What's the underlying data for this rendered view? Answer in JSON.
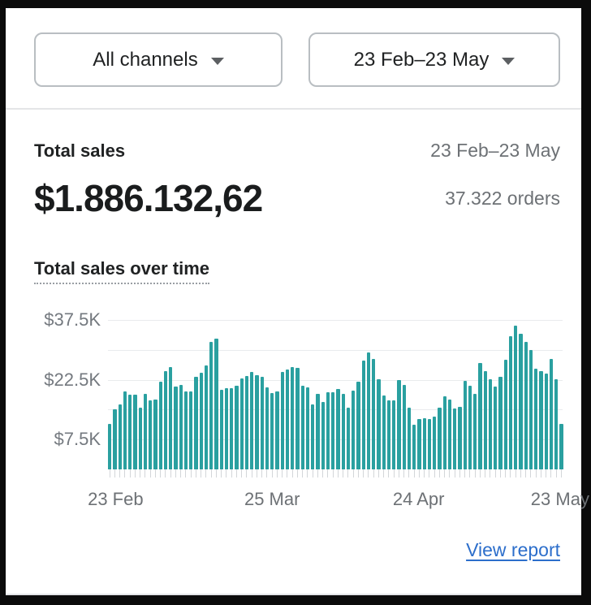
{
  "colors": {
    "bar_teal": "#2aa0a0",
    "link_blue": "#2c6ecb",
    "text_dark": "#202223",
    "text_secondary": "#6d7175",
    "frame_black": "#0b0b0b"
  },
  "header": {
    "channel_dropdown": {
      "label": "All channels",
      "icon": "caret-down"
    },
    "date_dropdown": {
      "label": "23 Feb–23 May",
      "icon": "caret-down"
    }
  },
  "metric": {
    "title": "Total sales",
    "date_range": "23 Feb–23 May",
    "value": "$1.886.132,62",
    "orders": "37.322 orders"
  },
  "chart_section": {
    "title": "Total sales over time",
    "view_report_label": "View report"
  },
  "chart_data": {
    "type": "bar",
    "title": "Total sales over time",
    "unit": "$K",
    "bar_color": "#2aa0a0",
    "ylim": [
      0,
      37.5
    ],
    "gridlines_k": [
      37.5,
      30,
      22.5,
      15,
      7.5
    ],
    "y_ticks": [
      {
        "label": "$37.5K",
        "value": 37.5
      },
      {
        "label": "$22.5K",
        "value": 22.5
      },
      {
        "label": "$7.5K",
        "value": 7.5
      }
    ],
    "x_ticks": [
      {
        "label": "23 Feb",
        "bar_index": 1
      },
      {
        "label": "25 Mar",
        "bar_index": 32
      },
      {
        "label": "24 Apr",
        "bar_index": 61
      },
      {
        "label": "23 May",
        "bar_index": 89
      }
    ],
    "start_date": "23 Feb",
    "end_date": "23 May",
    "values_k": [
      11.5,
      15.0,
      16.4,
      19.5,
      18.7,
      18.7,
      15.4,
      18.9,
      17.4,
      17.5,
      22.0,
      24.6,
      25.7,
      20.8,
      21.3,
      19.6,
      19.6,
      23.2,
      24.2,
      26.1,
      31.9,
      32.9,
      20.0,
      20.3,
      20.3,
      21.0,
      22.9,
      23.5,
      24.4,
      23.6,
      23.2,
      20.5,
      19.1,
      19.5,
      24.4,
      25.0,
      25.7,
      25.5,
      21.0,
      20.5,
      16.4,
      18.9,
      17.0,
      19.3,
      19.4,
      20.1,
      18.9,
      15.5,
      19.8,
      22.0,
      27.3,
      29.4,
      27.8,
      22.7,
      18.6,
      17.4,
      17.4,
      22.5,
      21.3,
      15.5,
      11.2,
      12.7,
      12.9,
      12.7,
      13.3,
      15.5,
      18.4,
      17.5,
      15.3,
      15.7,
      22.2,
      21.0,
      18.9,
      26.6,
      24.6,
      22.7,
      20.8,
      23.2,
      27.5,
      33.5,
      36.0,
      34.0,
      32.0,
      30.0,
      25.2,
      24.6,
      24.0,
      27.8,
      22.7,
      11.5
    ]
  }
}
